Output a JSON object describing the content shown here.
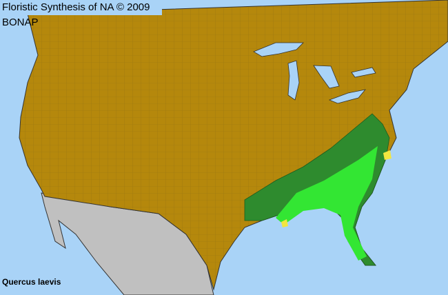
{
  "title": "Floristic Synthesis of NA © 2009 BONAP",
  "species": "Quercus laevis",
  "colors": {
    "water": "#a9d3f7",
    "land_absent": "#b5880c",
    "outside_region": "#c0c0c0",
    "present_native": "#2e8b2e",
    "present_common": "#33e633",
    "other": "#f2e640",
    "borders": "#333333"
  }
}
